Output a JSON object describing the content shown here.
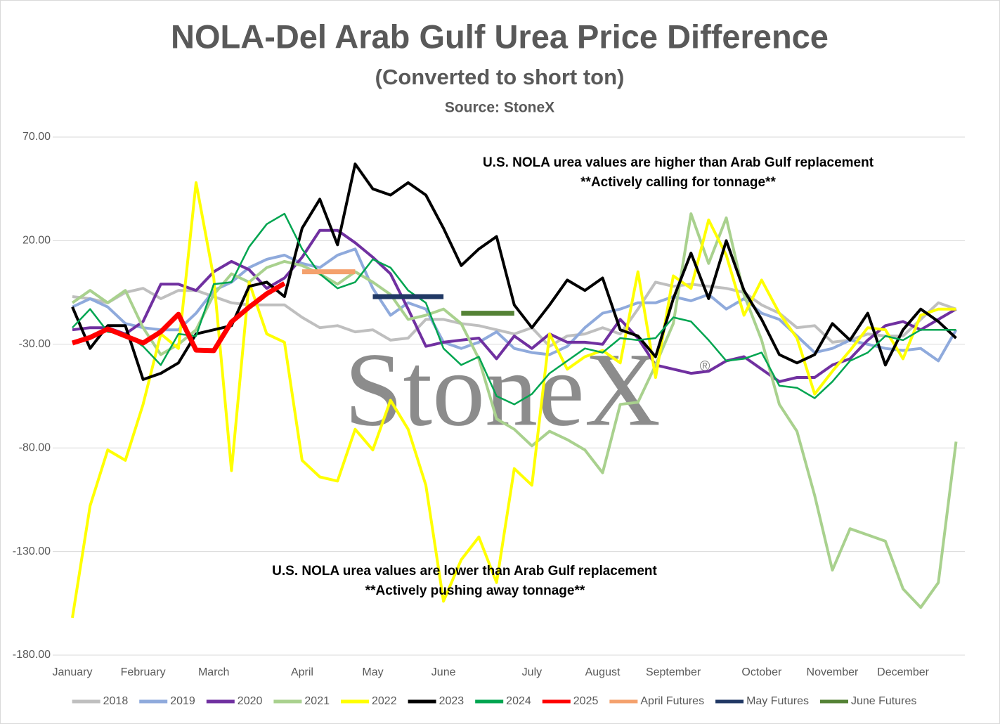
{
  "chart_data": {
    "type": "line",
    "title": "NOLA-Del Arab Gulf Urea Price Difference",
    "subtitle": "(Converted to short ton)",
    "source": "Source: StoneX",
    "annotations": [
      "U.S. NOLA urea values are higher than Arab Gulf replacement",
      "**Actively calling for tonnage**",
      "U.S. NOLA urea values are lower than Arab Gulf replacement",
      "**Actively pushing away tonnage**"
    ],
    "watermark": "StoneX",
    "watermark_mark": "®",
    "categories": [
      "January",
      null,
      null,
      null,
      "February",
      null,
      null,
      null,
      "March",
      null,
      null,
      null,
      null,
      "April",
      null,
      null,
      null,
      "May",
      null,
      null,
      null,
      "June",
      null,
      null,
      null,
      null,
      "July",
      null,
      null,
      null,
      "August",
      null,
      null,
      null,
      "September",
      null,
      null,
      null,
      null,
      "October",
      null,
      null,
      null,
      "November",
      null,
      null,
      null,
      "December",
      null,
      null,
      null
    ],
    "ylim": [
      -180,
      70
    ],
    "yticks": [
      {
        "value": -180,
        "label": "-180.00"
      },
      {
        "value": -130,
        "label": "-130.00"
      },
      {
        "value": -80,
        "label": "-80.00"
      },
      {
        "value": -30,
        "label": "-30.00"
      },
      {
        "value": 20,
        "label": "20.00"
      },
      {
        "value": 70,
        "label": "70.00"
      }
    ],
    "grid": true,
    "legend": "bottom",
    "series": [
      {
        "name": "2018",
        "color": "#bfbfbf",
        "width": 4,
        "values": [
          -7,
          -8,
          -10,
          -5,
          -3,
          -8,
          -4,
          -4,
          -7,
          -10,
          -11,
          -11,
          -11,
          -17,
          -22,
          -21,
          -24,
          -23,
          -28,
          -27,
          -18,
          -18,
          -20,
          -21,
          -23,
          -25,
          -22,
          -31,
          -26,
          -25,
          -22,
          -25,
          -13,
          0,
          -2,
          -1,
          -2,
          -3,
          -5,
          -11,
          -15,
          -22,
          -21,
          -29,
          -28,
          -25,
          -26,
          -26,
          -18,
          -10,
          -13
        ]
      },
      {
        "name": "2019",
        "color": "#8faadc",
        "width": 4,
        "values": [
          -12,
          -8,
          -12,
          -20,
          -22,
          -23,
          -23,
          -15,
          -4,
          0,
          7,
          11,
          13,
          9,
          7,
          13,
          16,
          -3,
          -16,
          -10,
          -13,
          -29,
          -32,
          -29,
          -24,
          -32,
          -34,
          -35,
          -31,
          -22,
          -15,
          -13,
          -10,
          -10,
          -7,
          -9,
          -6,
          -13,
          -8,
          -15,
          -18,
          -26,
          -34,
          -32,
          -28,
          -30,
          -32,
          -33,
          -32,
          -38,
          -23
        ]
      },
      {
        "name": "2020",
        "color": "#7030a0",
        "width": 4,
        "values": [
          -23,
          -22,
          -22,
          -25,
          -19,
          -1,
          -1,
          -4,
          5,
          10,
          6,
          -3,
          2,
          12,
          25,
          25,
          19,
          12,
          4,
          -13,
          -31,
          -29,
          -28,
          -27,
          -37,
          -26,
          -32,
          -25,
          -29,
          -29,
          -30,
          -18,
          -27,
          -40,
          -42,
          -44,
          -43,
          -38,
          -36,
          -42,
          -48,
          -46,
          -46,
          -40,
          -37,
          -28,
          -21,
          -19,
          -23,
          -18,
          -13
        ]
      },
      {
        "name": "2021",
        "color": "#a9d18e",
        "width": 4,
        "values": [
          -10,
          -4,
          -10,
          -4,
          -22,
          -35,
          -30,
          -23,
          -6,
          4,
          0,
          7,
          10,
          8,
          4,
          -1,
          5,
          0,
          -6,
          -18,
          -16,
          -13,
          -20,
          -37,
          -66,
          -71,
          -79,
          -72,
          -76,
          -81,
          -92,
          -59,
          -58,
          -40,
          -20,
          33,
          9,
          31,
          -6,
          -28,
          -59,
          -72,
          -103,
          -139,
          -119,
          -122,
          -125,
          -148,
          -157,
          -145,
          -77
        ]
      },
      {
        "name": "2022",
        "color": "#ffff00",
        "width": 4,
        "values": [
          -162,
          -108,
          -81,
          -86,
          -59,
          -25,
          -32,
          48,
          2,
          -91,
          0,
          -25,
          -29,
          -86,
          -94,
          -96,
          -71,
          -81,
          -57,
          -71,
          -98,
          -154,
          -134,
          -123,
          -145,
          -90,
          -98,
          -25,
          -42,
          -36,
          -33,
          -39,
          5,
          -46,
          3,
          -3,
          30,
          13,
          -16,
          1,
          -15,
          -27,
          -54,
          -43,
          -33,
          -22,
          -23,
          -37,
          -16,
          -13,
          -13
        ]
      },
      {
        "name": "2023",
        "color": "#000000",
        "width": 4,
        "values": [
          -12,
          -32,
          -21,
          -21,
          -47,
          -44,
          -39,
          -25,
          -23,
          -21,
          -2,
          0,
          -7,
          26,
          40,
          18,
          57,
          45,
          42,
          48,
          42,
          26,
          8,
          16,
          22,
          -11,
          -22,
          -11,
          1,
          -4,
          2,
          -23,
          -26,
          -36,
          -8,
          14,
          -8,
          20,
          -4,
          -18,
          -35,
          -39,
          -35,
          -20,
          -28,
          -15,
          -40,
          -23,
          -13,
          -19,
          -27
        ]
      },
      {
        "name": "2024",
        "color": "#00a550",
        "width": 2.5,
        "values": [
          -22,
          -13,
          -24,
          -25,
          -31,
          -40,
          -25,
          -26,
          -1,
          0,
          17,
          28,
          33,
          16,
          4,
          -3,
          0,
          11,
          7,
          -4,
          -10,
          -32,
          -40,
          -36,
          -55,
          -59,
          -54,
          -44,
          -38,
          -32,
          -34,
          -27,
          -28,
          -27,
          -17,
          -19,
          -28,
          -38,
          -37,
          -34,
          -50,
          -51,
          -56,
          -48,
          -38,
          -34,
          -26,
          -28,
          -23,
          -23,
          -23
        ]
      },
      {
        "name": "2025",
        "color": "#ff0000",
        "width": 7,
        "values": [
          -29.4,
          -26.7,
          -22.6,
          -26,
          -29.4,
          -24,
          -15.5,
          -32.8,
          -33.1,
          -19.2,
          -12.1,
          -5.6,
          -0.6,
          null,
          null,
          null,
          null,
          null,
          null,
          null,
          null,
          null,
          null,
          null,
          null,
          null,
          null,
          null,
          null,
          null,
          null,
          null,
          null,
          null,
          null,
          null,
          null,
          null,
          null,
          null,
          null,
          null,
          null,
          null,
          null,
          null,
          null,
          null,
          null,
          null,
          null
        ]
      },
      {
        "name": "April Futures",
        "color": "#f4a16d",
        "width": 7,
        "values": [
          null,
          null,
          null,
          null,
          null,
          null,
          null,
          null,
          null,
          null,
          null,
          null,
          null,
          5,
          5,
          5,
          5,
          null,
          null,
          null,
          null,
          null,
          null,
          null,
          null,
          null,
          null,
          null,
          null,
          null,
          null,
          null,
          null,
          null,
          null,
          null,
          null,
          null,
          null,
          null,
          null,
          null,
          null,
          null,
          null,
          null,
          null,
          null,
          null,
          null,
          null
        ]
      },
      {
        "name": "May Futures",
        "color": "#203864",
        "width": 7,
        "values": [
          null,
          null,
          null,
          null,
          null,
          null,
          null,
          null,
          null,
          null,
          null,
          null,
          null,
          null,
          null,
          null,
          null,
          -7,
          -7,
          -7,
          -7,
          -7,
          null,
          null,
          null,
          null,
          null,
          null,
          null,
          null,
          null,
          null,
          null,
          null,
          null,
          null,
          null,
          null,
          null,
          null,
          null,
          null,
          null,
          null,
          null,
          null,
          null,
          null,
          null,
          null,
          null
        ]
      },
      {
        "name": "June Futures",
        "color": "#548235",
        "width": 7,
        "values": [
          null,
          null,
          null,
          null,
          null,
          null,
          null,
          null,
          null,
          null,
          null,
          null,
          null,
          null,
          null,
          null,
          null,
          null,
          null,
          null,
          null,
          null,
          -15,
          -15,
          -15,
          -15,
          null,
          null,
          null,
          null,
          null,
          null,
          null,
          null,
          null,
          null,
          null,
          null,
          null,
          null,
          null,
          null,
          null,
          null,
          null,
          null,
          null,
          null,
          null,
          null,
          null
        ]
      }
    ]
  }
}
